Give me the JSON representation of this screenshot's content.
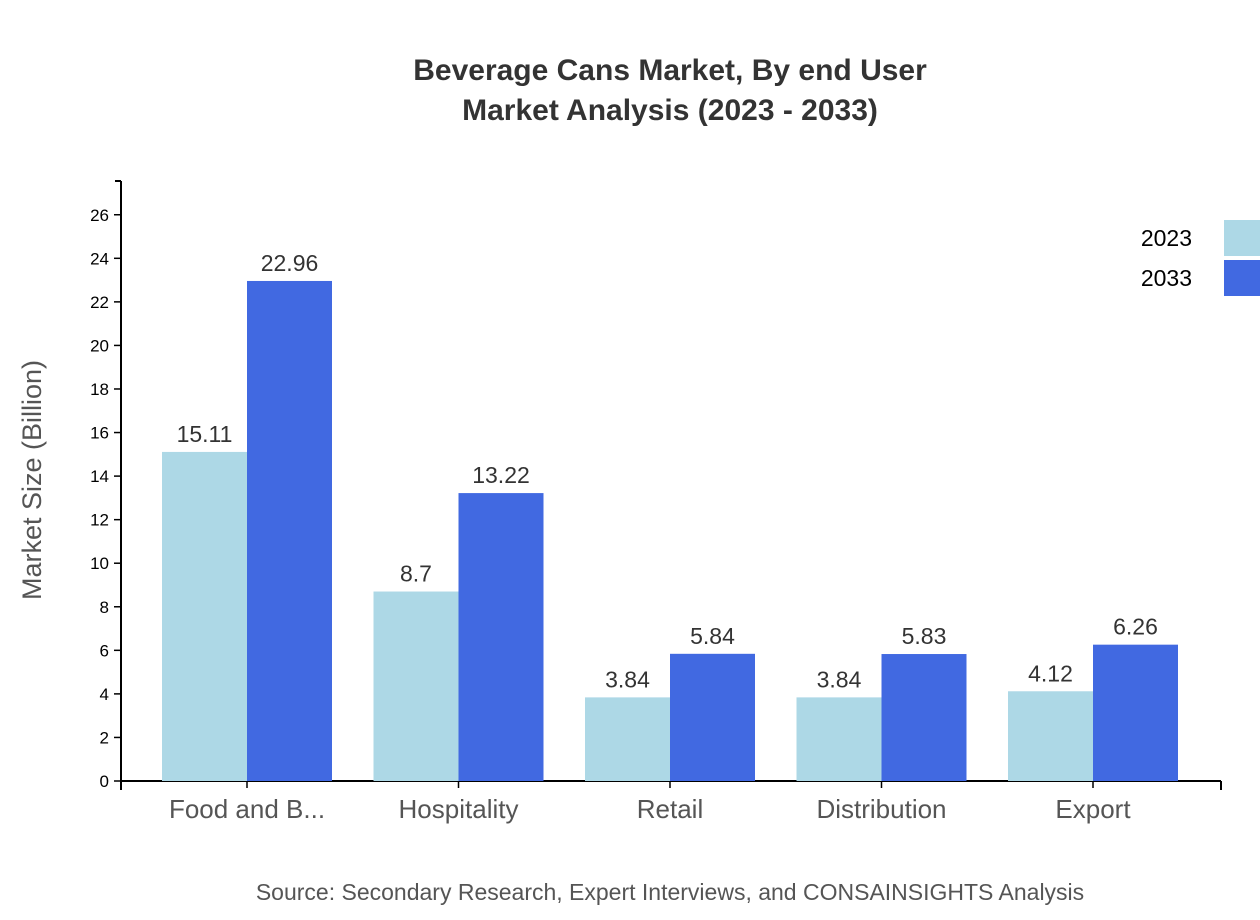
{
  "chart_data": {
    "type": "bar",
    "title_lines": [
      "Beverage Cans Market, By end User",
      "Market Analysis (2023 - 2033)"
    ],
    "xlabel": "",
    "ylabel": "Market Size (Billion)",
    "categories": [
      "Food and B...",
      "Hospitality",
      "Retail",
      "Distribution",
      "Export"
    ],
    "series": [
      {
        "name": "2023",
        "color": "#add8e6",
        "values": [
          15.11,
          8.7,
          3.84,
          3.84,
          4.12
        ]
      },
      {
        "name": "2033",
        "color": "#4169e1",
        "values": [
          22.96,
          13.22,
          5.84,
          5.83,
          6.26
        ]
      }
    ],
    "ylim": [
      0,
      27.55
    ],
    "yticks": [
      0,
      2,
      4,
      6,
      8,
      10,
      12,
      14,
      16,
      18,
      20,
      22,
      24,
      26
    ],
    "grid": false,
    "legend": "top-right",
    "source": "Source: Secondary Research, Expert Interviews, and CONSAINSIGHTS Analysis"
  }
}
